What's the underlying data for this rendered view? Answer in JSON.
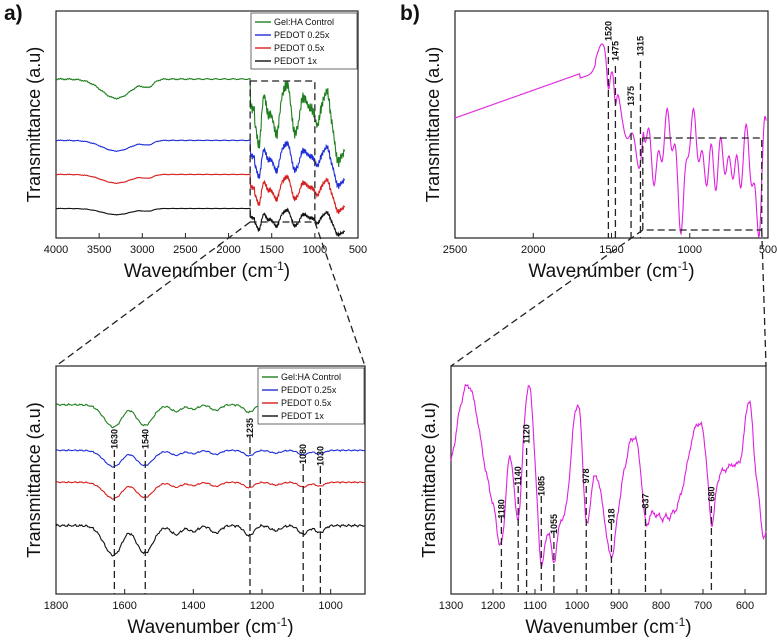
{
  "panels": {
    "a": "a)",
    "b": "b)"
  },
  "chart_data": [
    {
      "id": "a_full",
      "type": "line",
      "xlabel": "Wavenumber (cm",
      "xlabel_sup": "-1",
      "xlabel_end": ")",
      "ylabel": "Transmittance (a.u)",
      "xlim": [
        4000,
        500
      ],
      "xticks": [
        4000,
        3500,
        3000,
        2500,
        2000,
        1500,
        1000,
        500
      ],
      "legend": "top-right",
      "series": [
        {
          "name": "Gel:HA Control",
          "color": "#1f7f1f",
          "offset": 0.7,
          "scale": 1.0
        },
        {
          "name": "PEDOT 0.25x",
          "color": "#1f2fd6",
          "offset": 0.43,
          "scale": 0.55
        },
        {
          "name": "PEDOT 0.5x",
          "color": "#d61f1f",
          "offset": 0.28,
          "scale": 0.45
        },
        {
          "name": "PEDOT 1x",
          "color": "#111111",
          "offset": 0.13,
          "scale": 0.32
        }
      ],
      "inset_region": [
        1750,
        1000
      ]
    },
    {
      "id": "a_zoom",
      "type": "line",
      "xlabel": "Wavenumber (cm",
      "xlabel_sup": "-1",
      "xlabel_end": ")",
      "ylabel": "Transmittance (a.u)",
      "xlim": [
        1800,
        900
      ],
      "xticks": [
        1800,
        1600,
        1400,
        1200,
        1000
      ],
      "legend": "top-right",
      "series": [
        {
          "name": "Gel:HA Control",
          "color": "#1f7f1f",
          "offset": 0.83,
          "scale": 0.75
        },
        {
          "name": "PEDOT 0.25x",
          "color": "#1f2fd6",
          "offset": 0.63,
          "scale": 0.55
        },
        {
          "name": "PEDOT 0.5x",
          "color": "#d61f1f",
          "offset": 0.49,
          "scale": 0.55
        },
        {
          "name": "PEDOT 1x",
          "color": "#111111",
          "offset": 0.3,
          "scale": 1.0
        }
      ],
      "peaks": [
        "1630",
        "1540",
        "1235",
        "1080",
        "1030"
      ],
      "peak_positions": [
        1630,
        1540,
        1235,
        1080,
        1030
      ]
    },
    {
      "id": "b_full",
      "type": "line",
      "xlabel": "Wavenumber (cm",
      "xlabel_sup": "-1",
      "xlabel_end": ")",
      "ylabel": "Transmittance (a.u)",
      "xlim": [
        2500,
        500
      ],
      "xticks": [
        2500,
        2000,
        1500,
        1000,
        500
      ],
      "series": [
        {
          "name": "PEDOT",
          "color": "#e020e0"
        }
      ],
      "peaks": [
        "1520",
        "1475",
        "1375",
        "1315"
      ],
      "peak_positions": [
        1520,
        1475,
        1375,
        1315
      ],
      "inset_region": [
        1300,
        540
      ]
    },
    {
      "id": "b_zoom",
      "type": "line",
      "xlabel": "Wavenumber (cm",
      "xlabel_sup": "-1",
      "xlabel_end": ")",
      "ylabel": "Transmittance (a.u)",
      "xlim": [
        1300,
        550
      ],
      "xticks": [
        1300,
        1200,
        1100,
        1000,
        900,
        800,
        700,
        600
      ],
      "series": [
        {
          "name": "PEDOT",
          "color": "#e020e0"
        }
      ],
      "peaks": [
        "1180",
        "1140",
        "1120",
        "1085",
        "1055",
        "978",
        "918",
        "837",
        "680"
      ],
      "peak_positions": [
        1180,
        1140,
        1120,
        1085,
        1055,
        978,
        918,
        837,
        680
      ]
    }
  ]
}
